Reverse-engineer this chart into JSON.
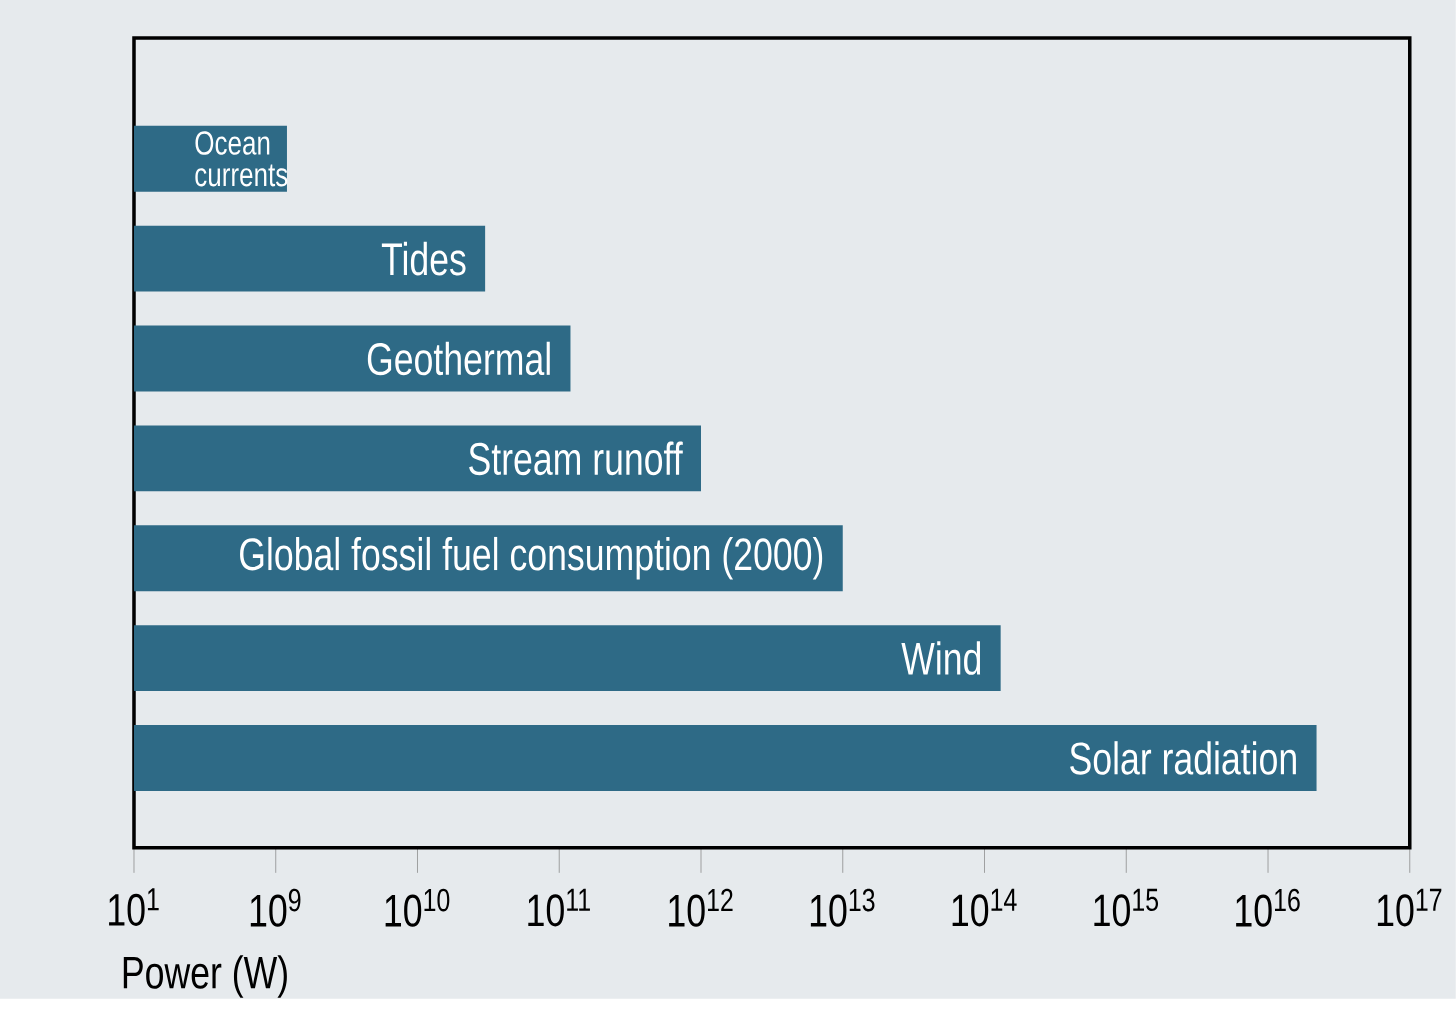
{
  "chart_data": {
    "type": "bar",
    "orientation": "horizontal",
    "log": "x",
    "categories": [
      "Ocean currents",
      "Tides",
      "Geothermal",
      "Stream runoff",
      "Global fossil fuel consumption (2000)",
      "Wind",
      "Solar radiation"
    ],
    "values": [
      1200000000,
      30000000000,
      120000000000,
      1000000000000,
      10000000000000,
      130000000000000,
      22000000000000000
    ],
    "color": "#2e6a86",
    "xlabel": "Power (W)",
    "xlim": [
      100000000,
      100000000000000000
    ],
    "annotations": [
      "10$^{1}$"
    ],
    "xticks": [
      {
        "value": 100000000,
        "label": null
      },
      {
        "value": 1000000000,
        "label": "10$^{9}$"
      },
      {
        "value": 10000000000,
        "label": "10$^{10}$"
      },
      {
        "value": 100000000000,
        "label": "10$^{11}$"
      },
      {
        "value": 1000000000000,
        "label": "10$^{12}$"
      },
      {
        "value": 10000000000000,
        "label": "10$^{13}$"
      },
      {
        "value": 100000000000000,
        "label": "10$^{14}$"
      },
      {
        "value": 1000000000000000,
        "label": "10$^{15}$"
      },
      {
        "value": 10000000000000000,
        "label": "10$^{16}$"
      },
      {
        "value": 100000000000000000,
        "label": "10$^{17}$"
      }
    ],
    "grid": false
  }
}
